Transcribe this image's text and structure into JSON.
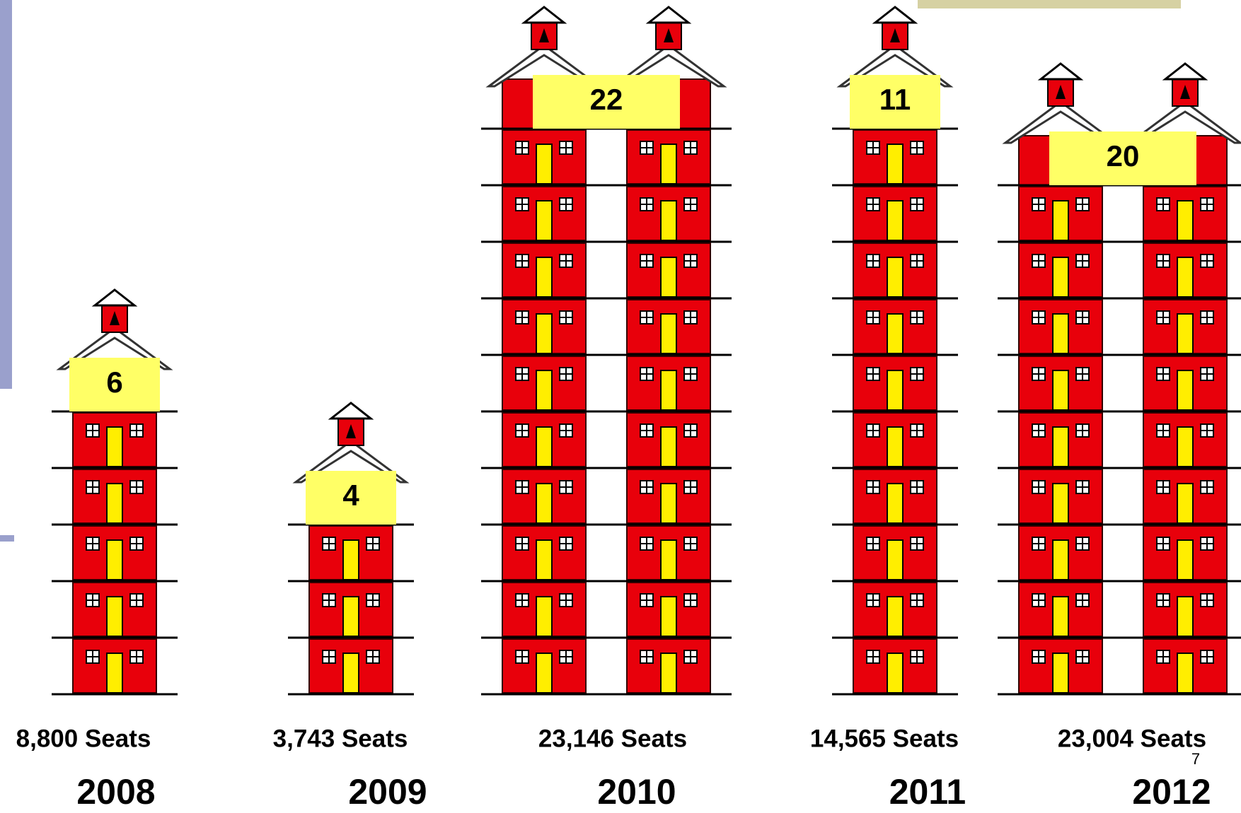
{
  "chart_data": {
    "type": "pictograph",
    "categories": [
      "2008",
      "2009",
      "2010",
      "2011",
      "2012"
    ],
    "values": [
      6,
      4,
      22,
      11,
      20
    ],
    "seats": {
      "values": [
        8800,
        3743,
        23146,
        14565,
        23004
      ],
      "value_labels": [
        "8,800 Seats",
        "3,743 Seats",
        "23,146 Seats",
        "14,565 Seats",
        "23,004 Seats"
      ]
    },
    "color": "#e8000b"
  },
  "page_number": "7"
}
